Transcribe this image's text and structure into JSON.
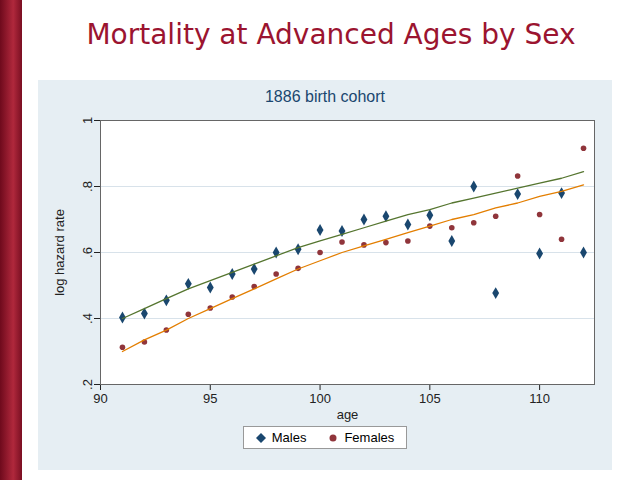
{
  "chart_data": {
    "type": "scatter",
    "title": "Mortality at Advanced Ages by Sex",
    "subtitle": "1886 birth cohort",
    "x_label": "age",
    "y_label": "log hazard rate",
    "x": [
      91,
      92,
      93,
      94,
      95,
      96,
      97,
      98,
      99,
      100,
      101,
      102,
      103,
      104,
      105,
      106,
      107,
      108,
      109,
      110,
      111,
      112
    ],
    "series": [
      {
        "name": "Males",
        "color": "#1a476f",
        "marker": "diamond",
        "values": [
          0.403,
          0.415,
          0.455,
          0.505,
          0.494,
          0.535,
          0.55,
          0.6,
          0.61,
          0.668,
          0.665,
          0.7,
          0.71,
          0.685,
          0.713,
          0.635,
          0.8,
          0.477,
          0.777,
          0.597,
          0.78,
          0.6
        ]
      },
      {
        "name": "Females",
        "color": "#90353b",
        "marker": "circle",
        "values": [
          0.313,
          0.329,
          0.365,
          0.413,
          0.432,
          0.465,
          0.497,
          0.535,
          0.552,
          0.6,
          0.632,
          0.623,
          0.63,
          0.635,
          0.68,
          0.675,
          0.69,
          0.71,
          0.832,
          0.715,
          0.64,
          0.916
        ]
      },
      {
        "type": "line",
        "color": "#55752f",
        "line_style": "solid",
        "values": [
          0.4,
          0.43,
          0.46,
          0.49,
          0.515,
          0.54,
          0.565,
          0.59,
          0.615,
          0.635,
          0.655,
          0.675,
          0.695,
          0.715,
          0.73,
          0.75,
          0.765,
          0.78,
          0.795,
          0.81,
          0.825,
          0.845
        ]
      },
      {
        "type": "line",
        "color": "#e37e00",
        "line_style": "solid",
        "values": [
          0.3,
          0.335,
          0.365,
          0.4,
          0.43,
          0.46,
          0.49,
          0.52,
          0.55,
          0.575,
          0.6,
          0.62,
          0.64,
          0.66,
          0.68,
          0.7,
          0.715,
          0.735,
          0.75,
          0.77,
          0.785,
          0.805
        ]
      }
    ],
    "xlim": [
      90,
      112.5
    ],
    "xticks": [
      90,
      95,
      100,
      105,
      110
    ],
    "ylim": [
      0.2,
      1
    ],
    "yticks": [
      {
        "value": 0.2,
        "label": ".2"
      },
      {
        "value": 0.4,
        "label": ".4"
      },
      {
        "value": 0.6,
        "label": ".6"
      },
      {
        "value": 0.8,
        "label": ".8"
      },
      1
    ],
    "grid": true,
    "legend": "bottom"
  }
}
